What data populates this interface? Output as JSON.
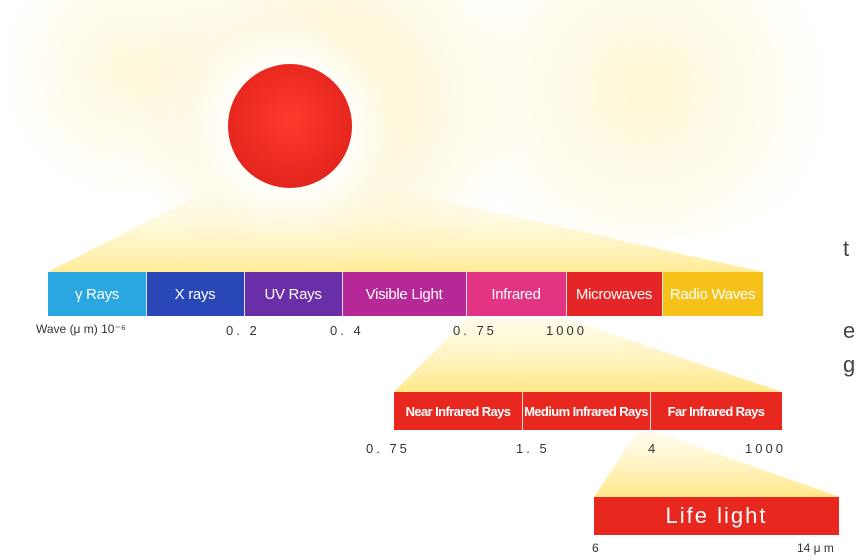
{
  "spectrum": {
    "wave_label": "Wave (μ m) 10⁻⁶",
    "segments": [
      {
        "label": "γ Rays",
        "color": "#2aa6e0"
      },
      {
        "label": "X rays",
        "color": "#2a47b8"
      },
      {
        "label": "UV Rays",
        "color": "#6a2fa8"
      },
      {
        "label": "Visible Light",
        "color": "#b62898"
      },
      {
        "label": "Infrared",
        "color": "#e23483"
      },
      {
        "label": "Microwaves",
        "color": "#e62626"
      },
      {
        "label": "Radio Waves",
        "color": "#f6c21a"
      }
    ],
    "ticks": [
      "0. 2",
      "0. 4",
      "0. 75",
      "1000"
    ]
  },
  "infrared": {
    "segments": [
      {
        "label": "Near Infrared Rays"
      },
      {
        "label": "Medium Infrared Rays"
      },
      {
        "label": "Far Infrared Rays"
      }
    ],
    "ticks": [
      "0. 75",
      "1. 5",
      "4",
      "1000"
    ],
    "color": "#e8281f"
  },
  "life_light": {
    "label": "Life light",
    "ticks": [
      "6",
      "14 μ m"
    ]
  },
  "side_text": [
    "t",
    "e",
    "g"
  ],
  "colors": {
    "sun": "#e9291f",
    "beam": "#fff2a8"
  }
}
